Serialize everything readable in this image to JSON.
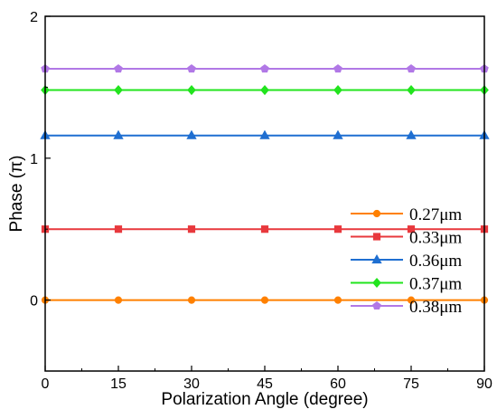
{
  "chart_data": {
    "type": "line",
    "xlabel": "Polarization Angle (degree)",
    "ylabel": "Phase (π)",
    "xlim": [
      0,
      90
    ],
    "ylim": [
      -0.5,
      2
    ],
    "xticks": [
      "0",
      "15",
      "30",
      "45",
      "60",
      "75",
      "90"
    ],
    "yticks": [
      "0",
      "1",
      "2"
    ],
    "grid": false,
    "legend_position": "bottom-right",
    "x": [
      0,
      15,
      30,
      45,
      60,
      75,
      90
    ],
    "series": [
      {
        "name": "0.27μm",
        "marker": "circle",
        "color": "#ff8000",
        "values": [
          0,
          0,
          0,
          0,
          0,
          0,
          0
        ]
      },
      {
        "name": "0.33μm",
        "marker": "square",
        "color": "#e8383d",
        "values": [
          0.5,
          0.5,
          0.5,
          0.5,
          0.5,
          0.5,
          0.5
        ]
      },
      {
        "name": "0.36μm",
        "marker": "triangle",
        "color": "#1f6fd1",
        "values": [
          1.16,
          1.16,
          1.16,
          1.16,
          1.16,
          1.16,
          1.16
        ]
      },
      {
        "name": "0.37μm",
        "marker": "diamond",
        "color": "#22e41e",
        "values": [
          1.48,
          1.48,
          1.48,
          1.48,
          1.48,
          1.48,
          1.48
        ]
      },
      {
        "name": "0.38μm",
        "marker": "pentagon",
        "color": "#b178e6",
        "values": [
          1.63,
          1.63,
          1.63,
          1.63,
          1.63,
          1.63,
          1.63
        ]
      }
    ]
  }
}
